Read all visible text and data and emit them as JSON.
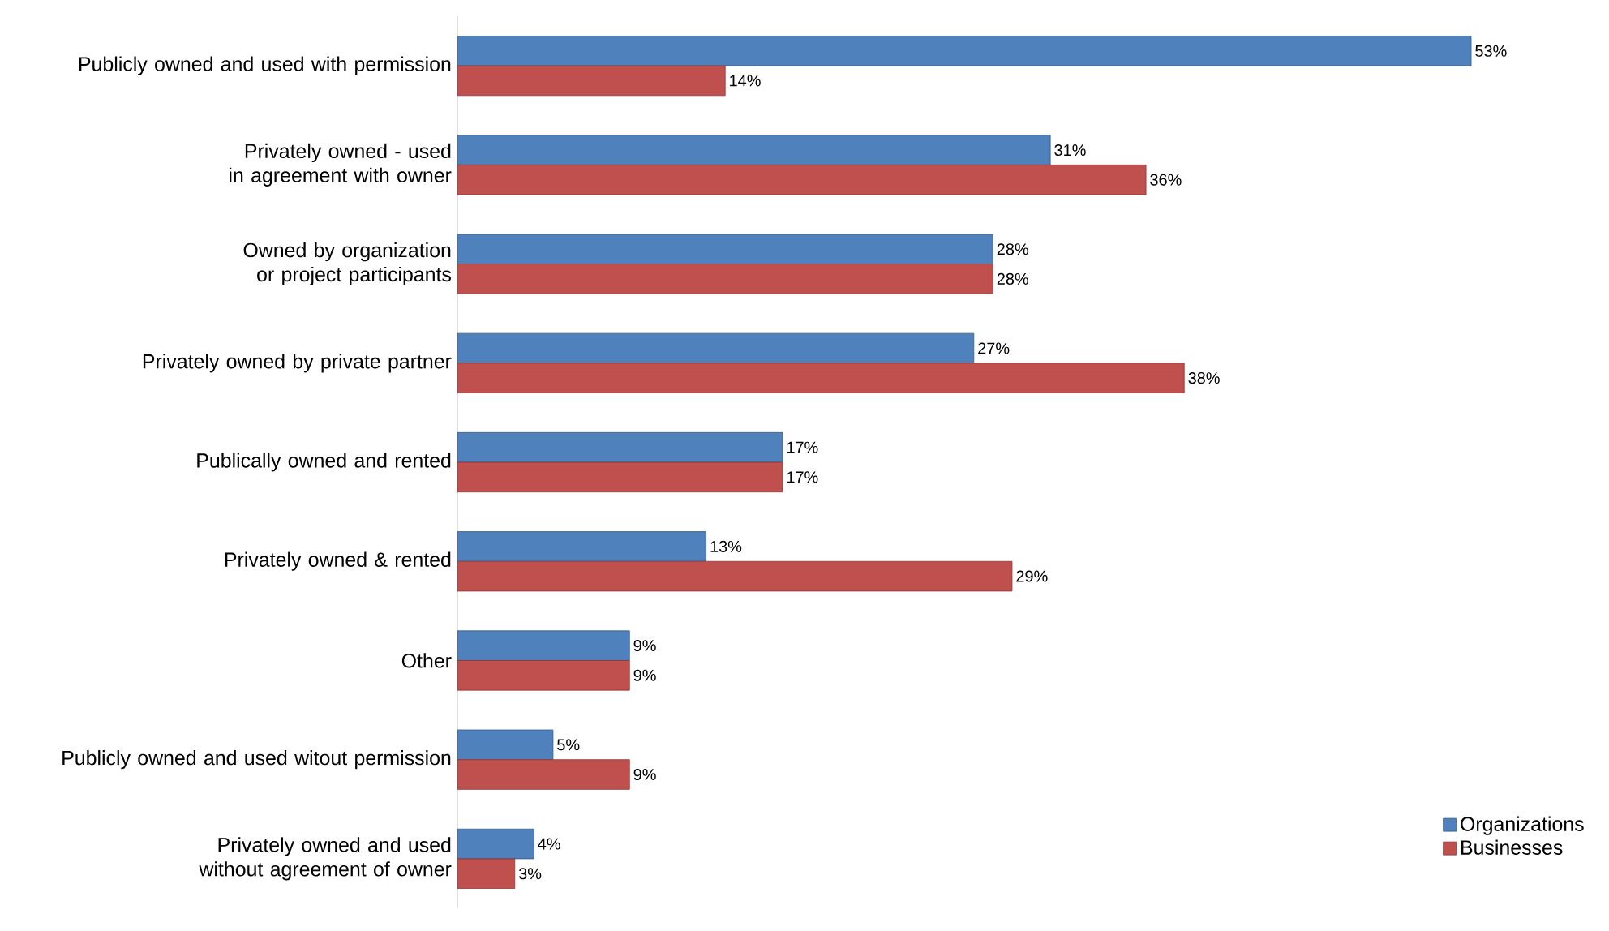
{
  "chart_data": {
    "type": "bar",
    "orientation": "horizontal",
    "categories": [
      "Publicly owned and used with permission",
      "Privately owned - used in agreement with owner",
      "Owned by organization or project participants",
      "Privately owned by private partner",
      "Publically owned and rented",
      "Privately owned & rented",
      "Other",
      "Publicly owned and used witout permission",
      "Privately owned and used without agreement of owner"
    ],
    "series": [
      {
        "name": "Organizations",
        "color": "#4f81bd",
        "values": [
          53,
          31,
          28,
          27,
          17,
          13,
          9,
          5,
          4
        ],
        "value_labels": [
          "53%",
          "31%",
          "28%",
          "27%",
          "17%",
          "13%",
          "9%",
          "5%",
          "4%"
        ]
      },
      {
        "name": "Businesses",
        "color": "#c0504d",
        "values": [
          14,
          36,
          28,
          38,
          17,
          29,
          9,
          9,
          3
        ],
        "value_labels": [
          "14%",
          "36%",
          "28%",
          "38%",
          "17%",
          "29%",
          "9%",
          "9%",
          "3%"
        ]
      }
    ],
    "legend": "bottom right"
  }
}
